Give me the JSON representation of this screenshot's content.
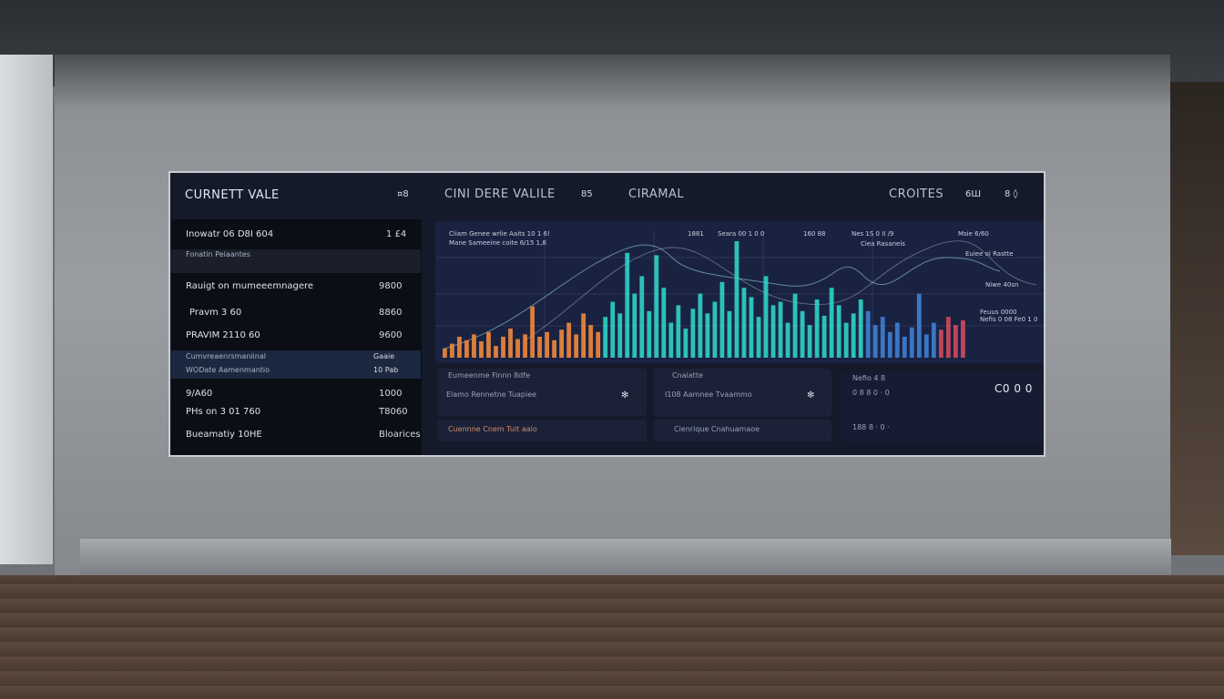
{
  "header": {
    "left_title": "CURNETT VALE",
    "left_icon": "¤8",
    "center_title": "CINI DERE VALILE",
    "center_code": "85",
    "center_tab": "CIRAMAL",
    "right_title": "CROITES",
    "right_code": "6Ш",
    "right_icon": "8 ◊"
  },
  "left_panel": {
    "rows": [
      {
        "label": "Inowatr 06 D8I 604",
        "value": "1 £4"
      },
      {
        "label": "Fonatin Peiaantes",
        "value": ""
      },
      {
        "label": "Rauigt on mumeeemnagere",
        "value": "9800"
      },
      {
        "label": "Pravm 3 60",
        "value": "8860"
      },
      {
        "label": "PRAVIM 2110 60",
        "value": "9600"
      },
      {
        "label": "Cumvreaenrsmaniinal",
        "value": "Gaaie"
      },
      {
        "label": "WODate Aamenmantio",
        "value": "10 Pab"
      },
      {
        "label": "9/A60",
        "value": "1000"
      },
      {
        "label": "PHs on 3 01 760",
        "value": "T8060"
      },
      {
        "label": "Bueamatiy 10HE",
        "value": "Bloarices"
      }
    ]
  },
  "chart_data": {
    "type": "bar",
    "annotations": [
      "Ciiam Genee wrlie Aaits 10 1 6!",
      "Mane Sameeine coite 6/15 1,8",
      "1881",
      "Seara 00 1 0 0",
      "160 88",
      "Nes 1S 0 II /9",
      "Ciea Rasaneis",
      "Msie 6/60",
      "Euiee oi Rastte",
      "Niwe 40sn",
      "Feuus 0000",
      "Nefis 0 08 Fe0 1 0"
    ],
    "ylim": [
      0,
      100
    ],
    "series": [
      {
        "color": "#f0883c",
        "values": [
          8,
          12,
          18,
          15,
          20,
          14,
          22,
          10,
          18,
          25,
          16,
          20,
          44,
          18,
          22,
          15,
          24,
          30,
          20,
          38,
          28,
          22
        ]
      },
      {
        "color": "#2fd3c6",
        "values": [
          35,
          48,
          38,
          90,
          55,
          70,
          40,
          88,
          60,
          30,
          45,
          25,
          42,
          55,
          38,
          48,
          65,
          40,
          100,
          60,
          52,
          35,
          70,
          45,
          48,
          30,
          55,
          40,
          28,
          50,
          36,
          60,
          45,
          30,
          38,
          50
        ]
      },
      {
        "color": "#3f7fd2",
        "values": [
          40,
          28,
          35,
          22,
          30,
          18,
          26,
          55,
          20,
          30
        ]
      },
      {
        "color": "#d24a5c",
        "values": [
          24,
          35,
          28,
          32
        ]
      }
    ]
  },
  "cards": [
    {
      "title": "Eumeenme Finnn 8dfe",
      "line": "Elamo Rennetne Tuapiee",
      "icon": "✻"
    },
    {
      "title": "Cuennne Cnem Tuit aalo"
    },
    {
      "title": "Cnaiatte",
      "line": "I108 Aamnee Tvaammo",
      "icon": "✻"
    },
    {
      "title": "Cienrique Cnahuamaoe"
    },
    {
      "title": "Nefio 4 8",
      "line": "0 8 8 0 · 0",
      "line2": "188 8 · 0 ·",
      "value": "C0 0 0"
    }
  ]
}
